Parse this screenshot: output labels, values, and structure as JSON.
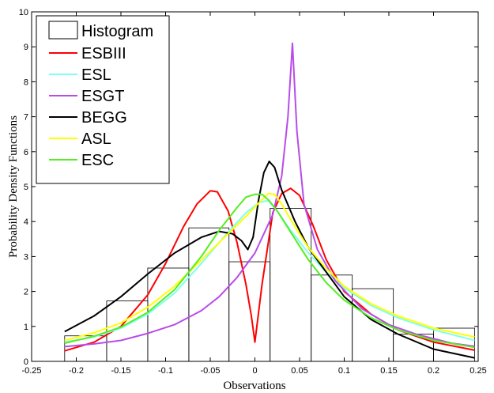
{
  "chart_data": {
    "type": "line",
    "title": "",
    "xlabel": "Observations",
    "ylabel": "Probability Density Functions",
    "xlim": [
      -0.25,
      0.25
    ],
    "ylim": [
      0,
      10
    ],
    "xticks": [
      "-0.25",
      "-0.2",
      "-0.15",
      "-0.1",
      "-0.05",
      "0",
      "0.05",
      "0.1",
      "0.15",
      "0.2",
      "0.25"
    ],
    "yticks": [
      "0",
      "1",
      "2",
      "3",
      "4",
      "5",
      "6",
      "7",
      "8",
      "9",
      "10"
    ],
    "legend_position": "top-left",
    "histogram": {
      "name": "Histogram",
      "bins": [
        {
          "x0": -0.213,
          "x1": -0.166,
          "value": 0.73
        },
        {
          "x0": -0.166,
          "x1": -0.12,
          "value": 1.73
        },
        {
          "x0": -0.12,
          "x1": -0.074,
          "value": 2.67
        },
        {
          "x0": -0.074,
          "x1": -0.029,
          "value": 3.82
        },
        {
          "x0": -0.029,
          "x1": 0.017,
          "value": 2.85
        },
        {
          "x0": 0.017,
          "x1": 0.063,
          "value": 4.38
        },
        {
          "x0": 0.063,
          "x1": 0.109,
          "value": 2.47
        },
        {
          "x0": 0.109,
          "x1": 0.155,
          "value": 2.08
        },
        {
          "x0": 0.155,
          "x1": 0.2,
          "value": 0.78
        },
        {
          "x0": 0.2,
          "x1": 0.246,
          "value": 0.95
        }
      ]
    },
    "series": [
      {
        "name": "ESBIII",
        "color": "#ff0000",
        "x": [
          -0.213,
          -0.18,
          -0.15,
          -0.12,
          -0.1,
          -0.08,
          -0.065,
          -0.05,
          -0.042,
          -0.03,
          -0.02,
          -0.01,
          -0.004,
          0.0,
          0.008,
          0.02,
          0.03,
          0.04,
          0.05,
          0.065,
          0.08,
          0.1,
          0.13,
          0.16,
          0.2,
          0.246
        ],
        "y": [
          0.3,
          0.55,
          1.0,
          1.9,
          2.8,
          3.85,
          4.5,
          4.88,
          4.85,
          4.3,
          3.4,
          2.2,
          1.3,
          0.55,
          2.2,
          4.25,
          4.8,
          4.95,
          4.75,
          3.9,
          2.9,
          2.0,
          1.35,
          0.9,
          0.55,
          0.32
        ]
      },
      {
        "name": "ESL",
        "color": "#80ffee",
        "x": [
          -0.213,
          -0.18,
          -0.15,
          -0.12,
          -0.09,
          -0.06,
          -0.03,
          -0.01,
          0.005,
          0.015,
          0.025,
          0.04,
          0.06,
          0.08,
          0.1,
          0.13,
          0.16,
          0.2,
          0.246
        ],
        "y": [
          0.55,
          0.7,
          0.95,
          1.35,
          1.95,
          2.8,
          3.7,
          4.25,
          4.55,
          4.6,
          4.3,
          3.75,
          3.1,
          2.55,
          2.1,
          1.6,
          1.25,
          0.9,
          0.6
        ]
      },
      {
        "name": "ESGT",
        "color": "#b84ce8",
        "x": [
          -0.213,
          -0.18,
          -0.15,
          -0.12,
          -0.09,
          -0.06,
          -0.04,
          -0.02,
          0.0,
          0.02,
          0.03,
          0.037,
          0.042,
          0.047,
          0.055,
          0.07,
          0.09,
          0.12,
          0.15,
          0.18,
          0.22,
          0.246
        ],
        "y": [
          0.42,
          0.5,
          0.6,
          0.8,
          1.05,
          1.45,
          1.85,
          2.4,
          3.1,
          4.2,
          5.3,
          7.0,
          9.1,
          6.6,
          4.5,
          3.2,
          2.3,
          1.5,
          1.05,
          0.78,
          0.52,
          0.43
        ]
      },
      {
        "name": "BEGG",
        "color": "#000000",
        "x": [
          -0.213,
          -0.18,
          -0.15,
          -0.12,
          -0.09,
          -0.06,
          -0.04,
          -0.025,
          -0.015,
          -0.008,
          -0.002,
          0.004,
          0.01,
          0.016,
          0.022,
          0.03,
          0.045,
          0.06,
          0.08,
          0.1,
          0.13,
          0.16,
          0.2,
          0.246
        ],
        "y": [
          0.85,
          1.3,
          1.85,
          2.5,
          3.1,
          3.55,
          3.72,
          3.65,
          3.45,
          3.2,
          3.55,
          4.6,
          5.4,
          5.72,
          5.55,
          4.9,
          4.0,
          3.25,
          2.55,
          1.85,
          1.2,
          0.78,
          0.35,
          0.1
        ]
      },
      {
        "name": "ASL",
        "color": "#ffff00",
        "x": [
          -0.213,
          -0.18,
          -0.15,
          -0.12,
          -0.09,
          -0.06,
          -0.03,
          -0.01,
          0.005,
          0.015,
          0.022,
          0.03,
          0.045,
          0.06,
          0.08,
          0.1,
          0.13,
          0.16,
          0.2,
          0.246
        ],
        "y": [
          0.6,
          0.82,
          1.1,
          1.55,
          2.15,
          2.9,
          3.65,
          4.15,
          4.55,
          4.8,
          4.78,
          4.5,
          3.85,
          3.25,
          2.65,
          2.15,
          1.65,
          1.3,
          0.95,
          0.7
        ]
      },
      {
        "name": "ESC",
        "color": "#55ee22",
        "x": [
          -0.213,
          -0.18,
          -0.15,
          -0.12,
          -0.09,
          -0.06,
          -0.04,
          -0.02,
          -0.01,
          0.0,
          0.008,
          0.016,
          0.025,
          0.04,
          0.06,
          0.08,
          0.1,
          0.13,
          0.16,
          0.2,
          0.246
        ],
        "y": [
          0.52,
          0.72,
          0.98,
          1.4,
          2.05,
          3.0,
          3.75,
          4.4,
          4.7,
          4.78,
          4.78,
          4.6,
          4.3,
          3.7,
          2.9,
          2.25,
          1.75,
          1.25,
          0.9,
          0.6,
          0.4
        ]
      }
    ]
  }
}
